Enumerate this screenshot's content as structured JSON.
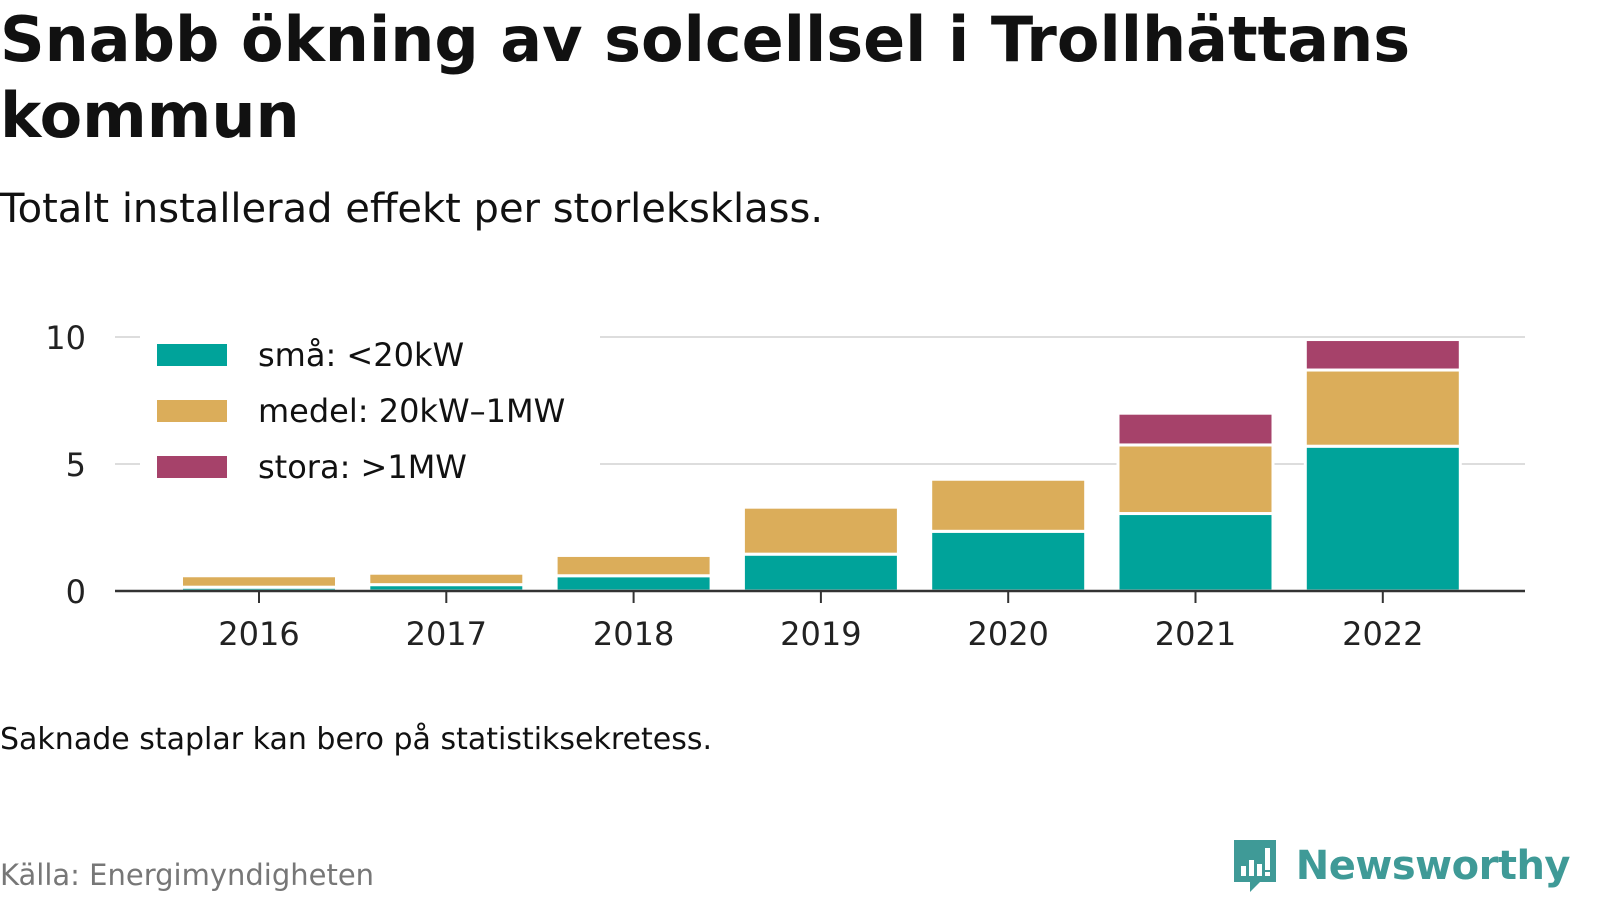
{
  "title": "Snabb ökning av solcellsel i Trollhättans kommun",
  "subtitle": "Totalt installerad effekt per storleksklass.",
  "note": "Saknade staplar kan bero på statistiksekretess.",
  "source": "Källa: Energimyndigheten",
  "brand": {
    "name": "Newsworthy",
    "icon": "newsworthy-logo-icon",
    "color": "#3f9a97"
  },
  "chart_data": {
    "type": "bar",
    "stacked": true,
    "categories": [
      "2016",
      "2017",
      "2018",
      "2019",
      "2020",
      "2021",
      "2022"
    ],
    "series": [
      {
        "name": "små: <20kW",
        "color": "#00a39a",
        "values": [
          0.15,
          0.25,
          0.6,
          1.45,
          2.35,
          3.05,
          5.7
        ]
      },
      {
        "name": "medel: 20kW–1MW",
        "color": "#dbad5a",
        "values": [
          0.45,
          0.45,
          0.8,
          1.85,
          2.05,
          2.7,
          3.0
        ]
      },
      {
        "name": "stora: >1MW",
        "color": "#a6426a",
        "values": [
          0,
          0,
          0,
          0,
          0,
          1.25,
          1.2
        ]
      }
    ],
    "yticks": [
      0,
      5,
      10
    ],
    "ylim": [
      0,
      10
    ],
    "grid": true,
    "legend_position": "top-left"
  }
}
